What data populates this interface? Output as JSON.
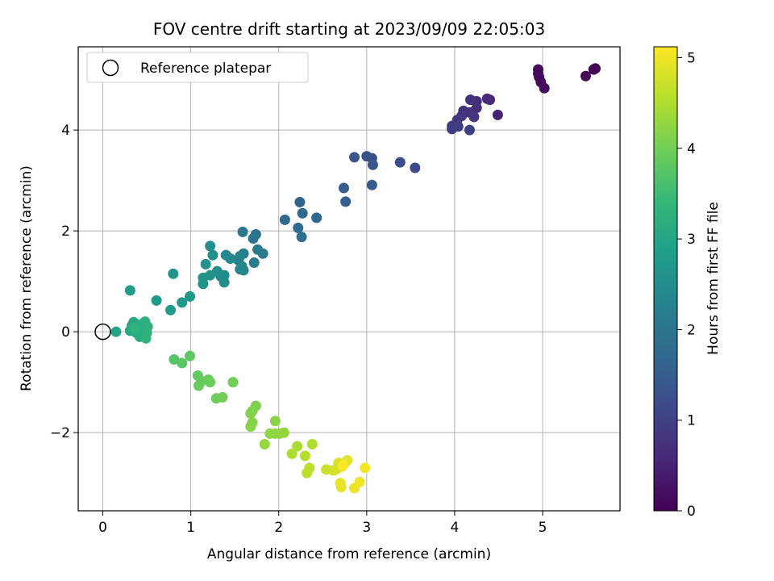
{
  "chart_data": {
    "type": "scatter",
    "title": "FOV centre drift starting at 2023/09/09 22:05:03",
    "xlabel": "Angular distance from reference (arcmin)",
    "ylabel": "Rotation from reference (arcmin)",
    "xlim": [
      -0.28,
      5.88
    ],
    "ylim": [
      -3.55,
      5.65
    ],
    "xticks": [
      0,
      1,
      2,
      3,
      4,
      5
    ],
    "yticks": [
      -2,
      0,
      2,
      4
    ],
    "xtick_labels": [
      "0",
      "1",
      "2",
      "3",
      "4",
      "5"
    ],
    "ytick_labels": [
      "−2",
      "0",
      "2",
      "4"
    ],
    "grid": true,
    "legend": {
      "position": "top-left",
      "entries": [
        {
          "label": "Reference platepar",
          "marker": "open-circle"
        }
      ]
    },
    "reference_point": {
      "x": 0,
      "y": 0
    },
    "colorbar": {
      "label": "Hours from first FF file",
      "colormap": "viridis",
      "range": [
        0,
        5.12
      ],
      "ticks": [
        0,
        1,
        2,
        3,
        4,
        5
      ],
      "tick_labels": [
        "0",
        "1",
        "2",
        "3",
        "4",
        "5"
      ]
    },
    "colormap_stops": [
      "#440154",
      "#482878",
      "#3e4989",
      "#31688e",
      "#26828e",
      "#1f9e89",
      "#35b779",
      "#6ece58",
      "#b5de2b",
      "#fde725"
    ],
    "points": [
      {
        "x": 5.6,
        "y": 5.22,
        "c": 0.0
      },
      {
        "x": 5.58,
        "y": 5.2,
        "c": 0.02
      },
      {
        "x": 5.49,
        "y": 5.07,
        "c": 0.05
      },
      {
        "x": 4.95,
        "y": 5.2,
        "c": 0.1
      },
      {
        "x": 4.95,
        "y": 5.12,
        "c": 0.12
      },
      {
        "x": 4.96,
        "y": 5.05,
        "c": 0.14
      },
      {
        "x": 4.98,
        "y": 4.95,
        "c": 0.16
      },
      {
        "x": 5.02,
        "y": 4.83,
        "c": 0.18
      },
      {
        "x": 4.49,
        "y": 4.3,
        "c": 0.5
      },
      {
        "x": 4.4,
        "y": 4.6,
        "c": 0.55
      },
      {
        "x": 4.37,
        "y": 4.62,
        "c": 0.6
      },
      {
        "x": 4.25,
        "y": 4.57,
        "c": 0.65
      },
      {
        "x": 4.25,
        "y": 4.44,
        "c": 0.7
      },
      {
        "x": 4.18,
        "y": 4.6,
        "c": 0.72
      },
      {
        "x": 4.17,
        "y": 4.35,
        "c": 0.75
      },
      {
        "x": 4.1,
        "y": 4.38,
        "c": 0.78
      },
      {
        "x": 4.08,
        "y": 4.28,
        "c": 0.8
      },
      {
        "x": 4.22,
        "y": 4.26,
        "c": 0.82
      },
      {
        "x": 4.03,
        "y": 4.2,
        "c": 0.85
      },
      {
        "x": 3.97,
        "y": 4.08,
        "c": 0.88
      },
      {
        "x": 3.97,
        "y": 4.02,
        "c": 0.9
      },
      {
        "x": 4.04,
        "y": 4.07,
        "c": 0.92
      },
      {
        "x": 4.17,
        "y": 4.0,
        "c": 0.95
      },
      {
        "x": 3.55,
        "y": 3.25,
        "c": 1.15
      },
      {
        "x": 3.38,
        "y": 3.36,
        "c": 1.2
      },
      {
        "x": 3.06,
        "y": 3.44,
        "c": 1.25
      },
      {
        "x": 3.0,
        "y": 3.48,
        "c": 1.3
      },
      {
        "x": 2.86,
        "y": 3.46,
        "c": 1.35
      },
      {
        "x": 3.07,
        "y": 3.31,
        "c": 1.4
      },
      {
        "x": 3.06,
        "y": 2.91,
        "c": 1.45
      },
      {
        "x": 2.74,
        "y": 2.85,
        "c": 1.5
      },
      {
        "x": 2.76,
        "y": 2.58,
        "c": 1.55
      },
      {
        "x": 2.24,
        "y": 2.57,
        "c": 1.65
      },
      {
        "x": 2.27,
        "y": 2.35,
        "c": 1.7
      },
      {
        "x": 2.43,
        "y": 2.26,
        "c": 1.72
      },
      {
        "x": 2.07,
        "y": 2.22,
        "c": 1.75
      },
      {
        "x": 2.22,
        "y": 2.06,
        "c": 1.8
      },
      {
        "x": 2.26,
        "y": 1.88,
        "c": 1.85
      },
      {
        "x": 1.74,
        "y": 1.93,
        "c": 1.95
      },
      {
        "x": 1.71,
        "y": 1.85,
        "c": 2.0
      },
      {
        "x": 1.59,
        "y": 1.98,
        "c": 2.05
      },
      {
        "x": 1.82,
        "y": 1.55,
        "c": 2.1
      },
      {
        "x": 1.76,
        "y": 1.63,
        "c": 2.12
      },
      {
        "x": 1.72,
        "y": 1.37,
        "c": 2.15
      },
      {
        "x": 1.6,
        "y": 1.55,
        "c": 2.2
      },
      {
        "x": 1.56,
        "y": 1.5,
        "c": 2.25
      },
      {
        "x": 1.54,
        "y": 1.42,
        "c": 2.3
      },
      {
        "x": 1.58,
        "y": 1.3,
        "c": 2.32
      },
      {
        "x": 1.6,
        "y": 1.22,
        "c": 2.35
      },
      {
        "x": 1.56,
        "y": 1.24,
        "c": 2.37
      },
      {
        "x": 1.4,
        "y": 1.52,
        "c": 2.4
      },
      {
        "x": 1.45,
        "y": 1.45,
        "c": 2.42
      },
      {
        "x": 1.38,
        "y": 1.12,
        "c": 2.45
      },
      {
        "x": 1.34,
        "y": 1.1,
        "c": 2.47
      },
      {
        "x": 1.38,
        "y": 0.98,
        "c": 2.5
      },
      {
        "x": 1.3,
        "y": 1.2,
        "c": 2.52
      },
      {
        "x": 1.22,
        "y": 1.7,
        "c": 2.55
      },
      {
        "x": 1.25,
        "y": 1.52,
        "c": 2.58
      },
      {
        "x": 1.17,
        "y": 1.34,
        "c": 2.6
      },
      {
        "x": 1.14,
        "y": 1.07,
        "c": 2.62
      },
      {
        "x": 1.22,
        "y": 1.12,
        "c": 2.64
      },
      {
        "x": 1.14,
        "y": 0.95,
        "c": 2.66
      },
      {
        "x": 0.8,
        "y": 1.15,
        "c": 2.7
      },
      {
        "x": 0.99,
        "y": 0.7,
        "c": 2.72
      },
      {
        "x": 0.9,
        "y": 0.58,
        "c": 2.74
      },
      {
        "x": 0.77,
        "y": 0.43,
        "c": 2.76
      },
      {
        "x": 0.61,
        "y": 0.62,
        "c": 2.78
      },
      {
        "x": 0.31,
        "y": 0.82,
        "c": 2.8
      },
      {
        "x": 0.15,
        "y": 0.0,
        "c": 3.0
      },
      {
        "x": 0.31,
        "y": 0.02,
        "c": 3.05
      },
      {
        "x": 0.33,
        "y": 0.12,
        "c": 3.08
      },
      {
        "x": 0.35,
        "y": 0.19,
        "c": 3.1
      },
      {
        "x": 0.38,
        "y": -0.02,
        "c": 3.12
      },
      {
        "x": 0.4,
        "y": 0.1,
        "c": 3.14
      },
      {
        "x": 0.42,
        "y": -0.1,
        "c": 3.16
      },
      {
        "x": 0.44,
        "y": 0.15,
        "c": 3.18
      },
      {
        "x": 0.46,
        "y": 0.05,
        "c": 3.2
      },
      {
        "x": 0.48,
        "y": 0.2,
        "c": 3.22
      },
      {
        "x": 0.5,
        "y": -0.02,
        "c": 3.24
      },
      {
        "x": 0.51,
        "y": 0.1,
        "c": 3.26
      },
      {
        "x": 0.36,
        "y": 0.07,
        "c": 3.28
      },
      {
        "x": 0.49,
        "y": -0.13,
        "c": 3.3
      },
      {
        "x": 0.81,
        "y": -0.55,
        "c": 3.75
      },
      {
        "x": 0.9,
        "y": -0.62,
        "c": 3.78
      },
      {
        "x": 0.99,
        "y": -0.48,
        "c": 3.8
      },
      {
        "x": 1.08,
        "y": -0.87,
        "c": 3.85
      },
      {
        "x": 1.12,
        "y": -0.98,
        "c": 3.88
      },
      {
        "x": 1.09,
        "y": -1.07,
        "c": 3.9
      },
      {
        "x": 1.2,
        "y": -0.95,
        "c": 3.92
      },
      {
        "x": 1.22,
        "y": -1.0,
        "c": 3.94
      },
      {
        "x": 1.29,
        "y": -1.32,
        "c": 3.96
      },
      {
        "x": 1.36,
        "y": -1.3,
        "c": 3.98
      },
      {
        "x": 1.48,
        "y": -1.0,
        "c": 4.0
      },
      {
        "x": 1.74,
        "y": -1.47,
        "c": 4.1
      },
      {
        "x": 1.7,
        "y": -1.57,
        "c": 4.12
      },
      {
        "x": 1.68,
        "y": -1.62,
        "c": 4.14
      },
      {
        "x": 1.7,
        "y": -1.8,
        "c": 4.16
      },
      {
        "x": 1.68,
        "y": -1.88,
        "c": 4.18
      },
      {
        "x": 1.96,
        "y": -1.77,
        "c": 4.2
      },
      {
        "x": 1.9,
        "y": -2.02,
        "c": 4.22
      },
      {
        "x": 1.96,
        "y": -2.02,
        "c": 4.24
      },
      {
        "x": 2.01,
        "y": -2.02,
        "c": 4.26
      },
      {
        "x": 2.06,
        "y": -2.0,
        "c": 4.28
      },
      {
        "x": 1.84,
        "y": -2.23,
        "c": 4.3
      },
      {
        "x": 2.21,
        "y": -2.27,
        "c": 4.45
      },
      {
        "x": 2.15,
        "y": -2.42,
        "c": 4.48
      },
      {
        "x": 2.38,
        "y": -2.23,
        "c": 4.5
      },
      {
        "x": 2.3,
        "y": -2.46,
        "c": 4.55
      },
      {
        "x": 2.35,
        "y": -2.7,
        "c": 4.58
      },
      {
        "x": 2.32,
        "y": -2.8,
        "c": 4.6
      },
      {
        "x": 2.54,
        "y": -2.73,
        "c": 4.7
      },
      {
        "x": 2.62,
        "y": -2.75,
        "c": 4.75
      },
      {
        "x": 2.66,
        "y": -2.72,
        "c": 4.8
      },
      {
        "x": 2.68,
        "y": -2.6,
        "c": 4.82
      },
      {
        "x": 2.72,
        "y": -2.67,
        "c": 4.85
      },
      {
        "x": 2.75,
        "y": -2.6,
        "c": 4.87
      },
      {
        "x": 2.78,
        "y": -2.55,
        "c": 4.9
      },
      {
        "x": 2.7,
        "y": -3.0,
        "c": 4.92
      },
      {
        "x": 2.71,
        "y": -3.08,
        "c": 4.95
      },
      {
        "x": 2.86,
        "y": -3.1,
        "c": 4.97
      },
      {
        "x": 2.92,
        "y": -2.98,
        "c": 5.0
      },
      {
        "x": 2.98,
        "y": -2.7,
        "c": 5.05
      },
      {
        "x": 2.73,
        "y": -2.65,
        "c": 5.1
      }
    ]
  }
}
